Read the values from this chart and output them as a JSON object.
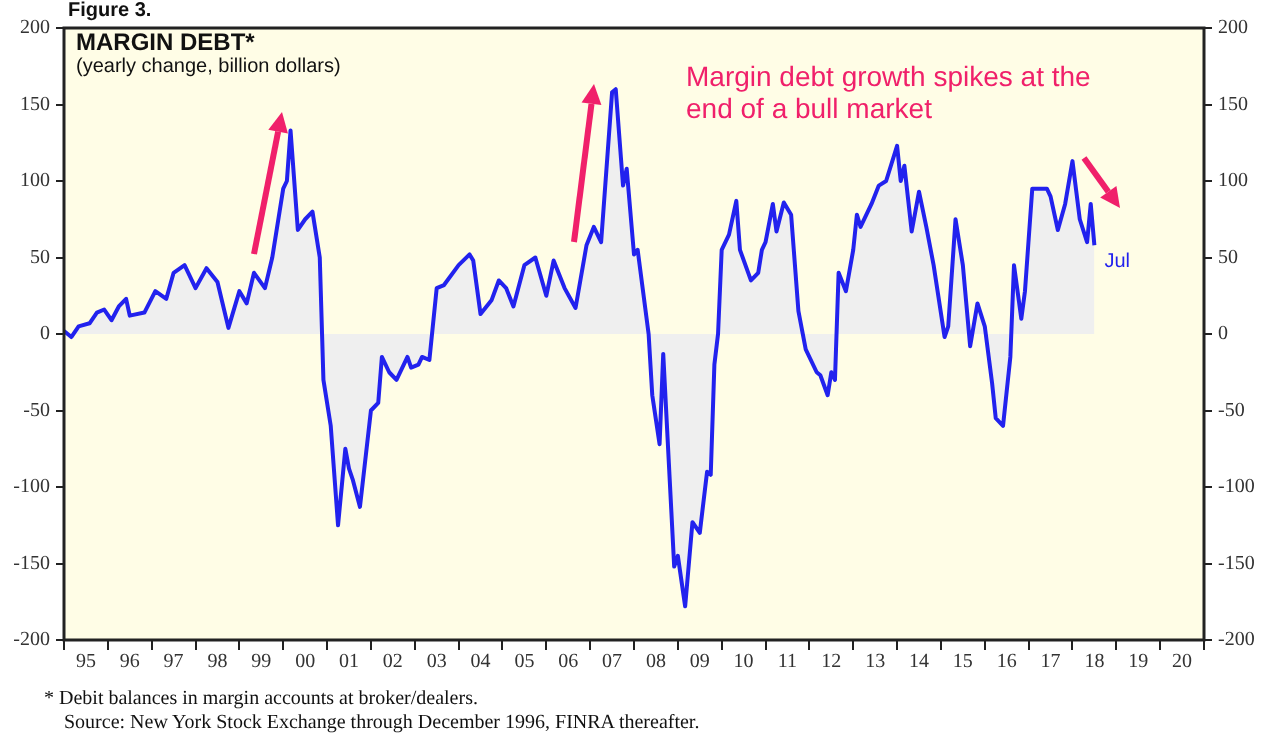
{
  "chart_data": {
    "type": "area",
    "title": "MARGIN DEBT*",
    "subtitle": "(yearly change, billion dollars)",
    "annotations": [
      "Figure 3.",
      "Margin debt growth spikes at the end of a bull market",
      {
        "text": "Jul",
        "x": "2018-07",
        "y": 58
      },
      "*  Debit balances in margin accounts at broker/dealers.",
      "Source: New York Stock Exchange through December 1996, FINRA thereafter."
    ],
    "series": [
      {
        "color": "#2222ee",
        "x": [
          "1995-01",
          "1995-03",
          "1995-05",
          "1995-08",
          "1995-10",
          "1995-12",
          "1996-02",
          "1996-04",
          "1996-06",
          "1996-07",
          "1996-11",
          "1997-02",
          "1997-05",
          "1997-07",
          "1997-10",
          "1998-01",
          "1998-04",
          "1998-07",
          "1998-10",
          "1999-01",
          "1999-03",
          "1999-05",
          "1999-08",
          "1999-10",
          "2000-01",
          "2000-02",
          "2000-03",
          "2000-05",
          "2000-07",
          "2000-09",
          "2000-11",
          "2000-12",
          "2001-02",
          "2001-04",
          "2001-06",
          "2001-07",
          "2001-08",
          "2001-10",
          "2002-01",
          "2002-03",
          "2002-04",
          "2002-06",
          "2002-08",
          "2002-11",
          "2002-12",
          "2003-02",
          "2003-03",
          "2003-05",
          "2003-07",
          "2003-09",
          "2004-01",
          "2004-04",
          "2004-05",
          "2004-07",
          "2004-10",
          "2004-12",
          "2005-02",
          "2005-04",
          "2005-07",
          "2005-10",
          "2006-01",
          "2006-03",
          "2006-06",
          "2006-09",
          "2006-12",
          "2007-02",
          "2007-04",
          "2007-07",
          "2007-08",
          "2007-10",
          "2007-11",
          "2008-01",
          "2008-02",
          "2008-05",
          "2008-06",
          "2008-08",
          "2008-09",
          "2008-12",
          "2009-01",
          "2009-03",
          "2009-05",
          "2009-07",
          "2009-09",
          "2009-10",
          "2009-11",
          "2009-12",
          "2010-01",
          "2010-03",
          "2010-05",
          "2010-06",
          "2010-09",
          "2010-11",
          "2010-12",
          "2011-01",
          "2011-03",
          "2011-04",
          "2011-06",
          "2011-08",
          "2011-10",
          "2011-12",
          "2012-03",
          "2012-04",
          "2012-06",
          "2012-07",
          "2012-08",
          "2012-09",
          "2012-11",
          "2013-01",
          "2013-02",
          "2013-03",
          "2013-06",
          "2013-08",
          "2013-10",
          "2014-01",
          "2014-02",
          "2014-03",
          "2014-05",
          "2014-07",
          "2014-09",
          "2014-11",
          "2015-02",
          "2015-03",
          "2015-05",
          "2015-07",
          "2015-09",
          "2015-11",
          "2016-01",
          "2016-03",
          "2016-04",
          "2016-06",
          "2016-08",
          "2016-09",
          "2016-11",
          "2016-12",
          "2017-02",
          "2017-06",
          "2017-07",
          "2017-09",
          "2017-11",
          "2018-01",
          "2018-03",
          "2018-05",
          "2018-06",
          "2018-07"
        ],
        "values": [
          2,
          -2,
          5,
          7,
          14,
          16,
          9,
          18,
          23,
          12,
          14,
          28,
          23,
          40,
          45,
          30,
          43,
          34,
          4,
          28,
          20,
          40,
          30,
          50,
          95,
          100,
          133,
          68,
          75,
          80,
          50,
          -30,
          -60,
          -125,
          -75,
          -88,
          -95,
          -113,
          -50,
          -45,
          -15,
          -25,
          -30,
          -15,
          -22,
          -20,
          -15,
          -17,
          30,
          32,
          45,
          52,
          48,
          13,
          22,
          35,
          30,
          18,
          45,
          50,
          25,
          48,
          30,
          17,
          58,
          70,
          60,
          158,
          160,
          97,
          108,
          52,
          55,
          0,
          -40,
          -72,
          -13,
          -152,
          -145,
          -178,
          -123,
          -130,
          -90,
          -92,
          -20,
          0,
          55,
          65,
          87,
          55,
          35,
          40,
          55,
          60,
          85,
          67,
          86,
          78,
          15,
          -10,
          -25,
          -27,
          -40,
          -25,
          -30,
          40,
          28,
          55,
          78,
          70,
          85,
          97,
          100,
          123,
          100,
          110,
          67,
          93,
          70,
          45,
          -2,
          5,
          75,
          45,
          -8,
          20,
          5,
          -32,
          -55,
          -60,
          -15,
          45,
          10,
          28,
          95,
          95,
          90,
          68,
          85,
          113,
          75,
          60,
          85,
          58
        ]
      }
    ],
    "xlim": [
      "1995",
      "2021"
    ],
    "xticks": [
      {
        "value": "1995",
        "label": null
      },
      {
        "value": "1995-07",
        "label": "95"
      },
      {
        "value": "1996",
        "label": null
      },
      {
        "value": "1996-07",
        "label": "96"
      },
      {
        "value": "1997",
        "label": null
      },
      {
        "value": "1997-07",
        "label": "97"
      },
      {
        "value": "1998",
        "label": null
      },
      {
        "value": "1998-07",
        "label": "98"
      },
      {
        "value": "1999",
        "label": null
      },
      {
        "value": "1999-07",
        "label": "99"
      },
      {
        "value": "2000",
        "label": null
      },
      {
        "value": "2000-07",
        "label": "00"
      },
      {
        "value": "2001",
        "label": null
      },
      {
        "value": "2001-07",
        "label": "01"
      },
      {
        "value": "2002",
        "label": null
      },
      {
        "value": "2002-07",
        "label": "02"
      },
      {
        "value": "2003",
        "label": null
      },
      {
        "value": "2003-07",
        "label": "03"
      },
      {
        "value": "2004",
        "label": null
      },
      {
        "value": "2004-07",
        "label": "04"
      },
      {
        "value": "2005",
        "label": null
      },
      {
        "value": "2005-07",
        "label": "05"
      },
      {
        "value": "2006",
        "label": null
      },
      {
        "value": "2006-07",
        "label": "06"
      },
      {
        "value": "2007",
        "label": null
      },
      {
        "value": "2007-07",
        "label": "07"
      },
      {
        "value": "2008",
        "label": null
      },
      {
        "value": "2008-07",
        "label": "08"
      },
      {
        "value": "2009",
        "label": null
      },
      {
        "value": "2009-07",
        "label": "09"
      },
      {
        "value": "2010",
        "label": null
      },
      {
        "value": "2010-07",
        "label": "10"
      },
      {
        "value": "2011",
        "label": null
      },
      {
        "value": "2011-07",
        "label": "11"
      },
      {
        "value": "2012",
        "label": null
      },
      {
        "value": "2012-07",
        "label": "12"
      },
      {
        "value": "2013",
        "label": null
      },
      {
        "value": "2013-07",
        "label": "13"
      },
      {
        "value": "2014",
        "label": null
      },
      {
        "value": "2014-07",
        "label": "14"
      },
      {
        "value": "2015",
        "label": null
      },
      {
        "value": "2015-07",
        "label": "15"
      },
      {
        "value": "2016",
        "label": null
      },
      {
        "value": "2016-07",
        "label": "16"
      },
      {
        "value": "2017",
        "label": null
      },
      {
        "value": "2017-07",
        "label": "17"
      },
      {
        "value": "2018",
        "label": null
      },
      {
        "value": "2018-07",
        "label": "18"
      },
      {
        "value": "2019",
        "label": null
      },
      {
        "value": "2019-07",
        "label": "19"
      },
      {
        "value": "2020",
        "label": null
      },
      {
        "value": "2020-07",
        "label": "20"
      },
      {
        "value": "2021",
        "label": null
      }
    ],
    "ylim": [
      -200,
      200
    ],
    "yticks": [
      -200,
      -150,
      -100,
      -50,
      0,
      50,
      100,
      150,
      200
    ],
    "y2lim": [
      -200,
      200
    ],
    "y2ticks": [
      -200,
      -150,
      -100,
      -50,
      0,
      50,
      100,
      150,
      200
    ],
    "grid": false,
    "legend": false
  }
}
